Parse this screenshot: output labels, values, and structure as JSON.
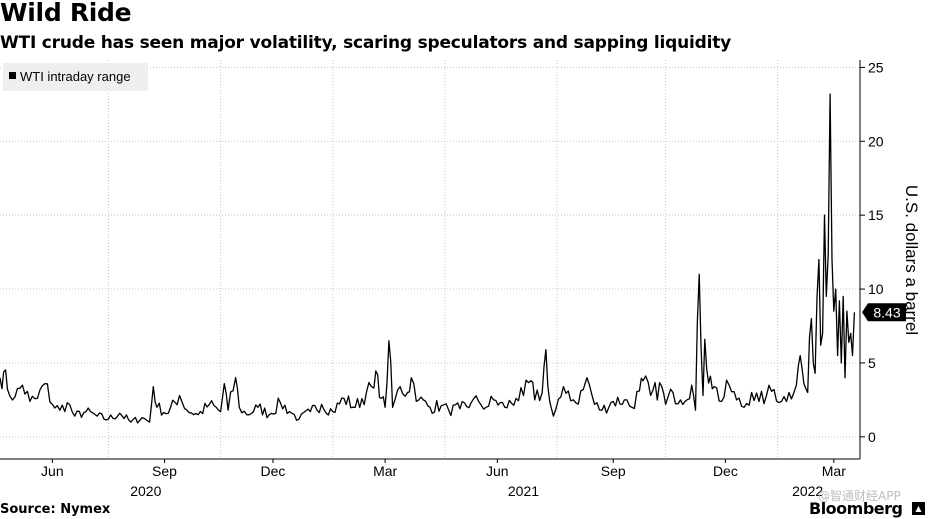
{
  "title": "Wild Ride",
  "subtitle": "WTI crude has seen major volatility, scaring speculators and sapping liquidity",
  "source": "Source: Nymex",
  "brand": "Bloomberg",
  "watermark": "@智通财经APP",
  "chart_data": {
    "type": "line",
    "series_name": "WTI intraday range",
    "legend_position": "top-left",
    "ylabel": "U.S. dollars a barrel",
    "ylim": [
      -1.5,
      25.5
    ],
    "yticks": [
      0,
      5,
      10,
      15,
      20,
      25
    ],
    "xlim": [
      0,
      23.0
    ],
    "xticks": [
      {
        "label": "Jun",
        "pos": 1.4
      },
      {
        "label": "Sep",
        "pos": 4.4
      },
      {
        "label": "Dec",
        "pos": 7.3
      },
      {
        "label": "Mar",
        "pos": 10.3
      },
      {
        "label": "Jun",
        "pos": 13.3
      },
      {
        "label": "Sep",
        "pos": 16.4
      },
      {
        "label": "Dec",
        "pos": 19.4
      },
      {
        "label": "Mar",
        "pos": 22.3
      }
    ],
    "year_labels": [
      {
        "label": "2020",
        "pos": 3.9
      },
      {
        "label": "2021",
        "pos": 14.0
      },
      {
        "label": "2022",
        "pos": 21.6
      }
    ],
    "vgrid_months": [
      2.9,
      5.9,
      8.9,
      11.9,
      14.9,
      17.8,
      20.8
    ],
    "last_value": 8.43,
    "last_value_label": "8.43",
    "anchors": [
      [
        0.0,
        4.0
      ],
      [
        0.1,
        4.4
      ],
      [
        0.2,
        3.2
      ],
      [
        0.4,
        2.7
      ],
      [
        0.6,
        3.5
      ],
      [
        0.8,
        2.4
      ],
      [
        1.0,
        2.6
      ],
      [
        1.2,
        3.6
      ],
      [
        1.4,
        2.2
      ],
      [
        1.6,
        1.8
      ],
      [
        1.8,
        2.3
      ],
      [
        2.0,
        1.4
      ],
      [
        2.3,
        1.7
      ],
      [
        2.6,
        1.4
      ],
      [
        2.9,
        1.2
      ],
      [
        3.2,
        1.6
      ],
      [
        3.5,
        1.0
      ],
      [
        3.8,
        1.3
      ],
      [
        4.0,
        1.0
      ],
      [
        4.1,
        3.4
      ],
      [
        4.2,
        2.0
      ],
      [
        4.5,
        1.6
      ],
      [
        4.8,
        2.8
      ],
      [
        5.0,
        1.8
      ],
      [
        5.3,
        1.5
      ],
      [
        5.6,
        2.2
      ],
      [
        5.9,
        1.7
      ],
      [
        6.0,
        3.6
      ],
      [
        6.1,
        1.8
      ],
      [
        6.3,
        4.0
      ],
      [
        6.4,
        2.0
      ],
      [
        6.6,
        1.5
      ],
      [
        6.9,
        2.0
      ],
      [
        7.2,
        1.5
      ],
      [
        7.5,
        2.3
      ],
      [
        7.8,
        1.6
      ],
      [
        8.0,
        1.2
      ],
      [
        8.3,
        1.7
      ],
      [
        8.6,
        2.2
      ],
      [
        8.9,
        1.7
      ],
      [
        9.2,
        2.6
      ],
      [
        9.5,
        2.0
      ],
      [
        9.8,
        3.0
      ],
      [
        10.0,
        3.3
      ],
      [
        10.1,
        4.2
      ],
      [
        10.2,
        2.6
      ],
      [
        10.3,
        2.0
      ],
      [
        10.4,
        6.5
      ],
      [
        10.5,
        2.0
      ],
      [
        10.7,
        3.4
      ],
      [
        10.9,
        3.0
      ],
      [
        11.0,
        4.0
      ],
      [
        11.2,
        2.5
      ],
      [
        11.5,
        2.0
      ],
      [
        11.8,
        2.1
      ],
      [
        12.0,
        1.8
      ],
      [
        12.3,
        1.9
      ],
      [
        12.6,
        2.3
      ],
      [
        12.8,
        2.4
      ],
      [
        13.0,
        2.0
      ],
      [
        13.2,
        2.5
      ],
      [
        13.5,
        2.0
      ],
      [
        13.8,
        2.6
      ],
      [
        14.0,
        2.8
      ],
      [
        14.2,
        3.8
      ],
      [
        14.3,
        2.5
      ],
      [
        14.5,
        3.0
      ],
      [
        14.6,
        5.9
      ],
      [
        14.7,
        2.4
      ],
      [
        14.8,
        1.4
      ],
      [
        15.0,
        2.7
      ],
      [
        15.2,
        3.1
      ],
      [
        15.4,
        2.3
      ],
      [
        15.6,
        3.2
      ],
      [
        15.7,
        4.0
      ],
      [
        15.9,
        2.2
      ],
      [
        16.1,
        1.8
      ],
      [
        16.4,
        2.4
      ],
      [
        16.7,
        2.5
      ],
      [
        16.9,
        2.0
      ],
      [
        17.1,
        3.1
      ],
      [
        17.2,
        3.8
      ],
      [
        17.4,
        2.8
      ],
      [
        17.7,
        3.4
      ],
      [
        17.8,
        2.2
      ],
      [
        18.0,
        3.0
      ],
      [
        18.2,
        2.5
      ],
      [
        18.5,
        3.5
      ],
      [
        18.6,
        1.8
      ],
      [
        18.7,
        11.0
      ],
      [
        18.8,
        2.8
      ],
      [
        18.85,
        6.6
      ],
      [
        18.9,
        4.6
      ],
      [
        19.0,
        4.1
      ],
      [
        19.1,
        3.4
      ],
      [
        19.3,
        2.4
      ],
      [
        19.5,
        3.5
      ],
      [
        19.7,
        2.5
      ],
      [
        19.9,
        2.0
      ],
      [
        20.1,
        3.0
      ],
      [
        20.3,
        2.4
      ],
      [
        20.5,
        2.8
      ],
      [
        20.7,
        3.2
      ],
      [
        20.9,
        2.4
      ],
      [
        21.1,
        3.0
      ],
      [
        21.3,
        3.5
      ],
      [
        21.4,
        5.5
      ],
      [
        21.5,
        3.6
      ],
      [
        21.6,
        3.0
      ],
      [
        21.7,
        8.0
      ],
      [
        21.8,
        4.3
      ],
      [
        21.85,
        9.4
      ],
      [
        21.9,
        12.0
      ],
      [
        21.95,
        6.2
      ],
      [
        22.0,
        7.0
      ],
      [
        22.05,
        15.0
      ],
      [
        22.1,
        9.5
      ],
      [
        22.15,
        12.3
      ],
      [
        22.2,
        23.2
      ],
      [
        22.25,
        12.0
      ],
      [
        22.3,
        8.5
      ],
      [
        22.35,
        10.0
      ],
      [
        22.4,
        5.5
      ],
      [
        22.45,
        9.2
      ],
      [
        22.5,
        5.0
      ],
      [
        22.55,
        9.5
      ],
      [
        22.6,
        4.0
      ],
      [
        22.65,
        8.5
      ],
      [
        22.7,
        6.4
      ],
      [
        22.75,
        7.0
      ],
      [
        22.8,
        5.5
      ],
      [
        22.85,
        8.43
      ]
    ]
  }
}
